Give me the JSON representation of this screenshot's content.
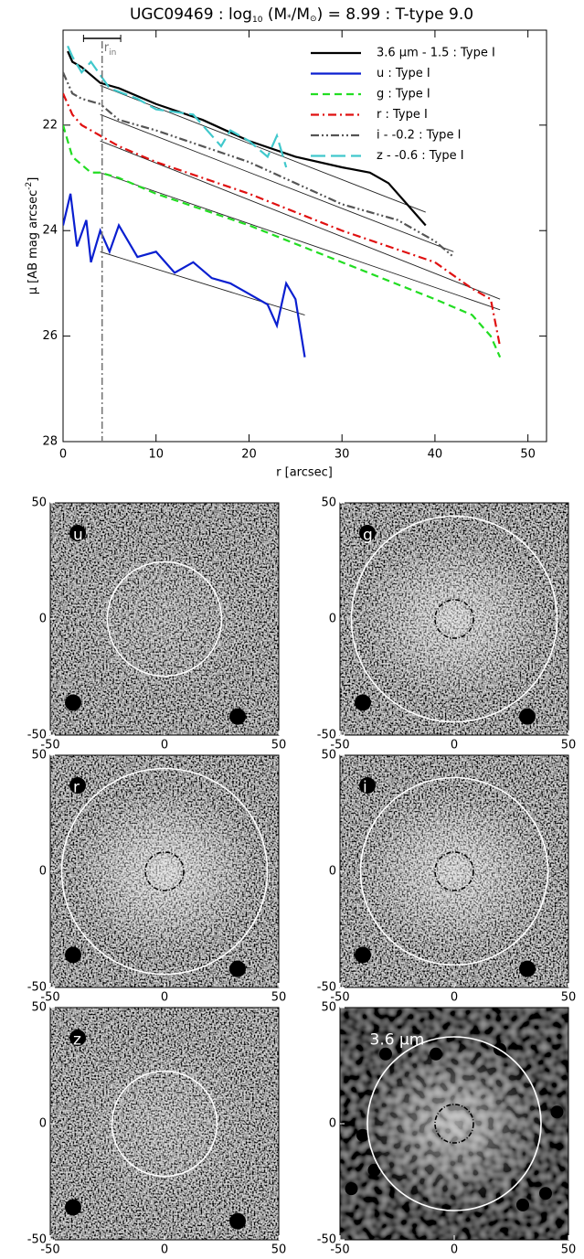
{
  "chart_data": [
    {
      "type": "line",
      "title": [
        "UGC09469 : log",
        "10",
        " (M",
        "*",
        "/M",
        "⊙",
        ") = 8.99 : T-type 9.0"
      ],
      "x_label": "r [arcsec]",
      "y_label": [
        "μ [AB mag arcsec",
        "-2",
        "]"
      ],
      "xlim": [
        0,
        52
      ],
      "ylim": [
        20.2,
        28
      ],
      "y_inverted": true,
      "xticks": [
        0,
        10,
        20,
        30,
        40,
        50
      ],
      "yticks": [
        22,
        24,
        26,
        28
      ],
      "series": [
        {
          "name": "3.6 μm - 1.5 : Type I",
          "color": "#000000",
          "label_color": "#000000",
          "linestyle": "solid",
          "x": [
            0.5,
            1,
            2,
            4,
            6,
            10,
            15,
            20,
            25,
            30,
            33,
            35,
            37,
            39
          ],
          "values": [
            20.6,
            20.8,
            20.9,
            21.2,
            21.3,
            21.6,
            21.9,
            22.3,
            22.6,
            22.8,
            22.9,
            23.1,
            23.5,
            23.9
          ]
        },
        {
          "name": "u : Type I",
          "color": "#0a1fd0",
          "label_color": "#0a1fd0",
          "linestyle": "solid",
          "x": [
            0,
            0.8,
            1.5,
            2.5,
            3,
            4,
            5,
            6,
            8,
            10,
            12,
            14,
            16,
            18,
            20,
            22,
            23,
            24,
            25,
            26
          ],
          "values": [
            23.9,
            23.3,
            24.3,
            23.8,
            24.6,
            24.0,
            24.4,
            23.9,
            24.5,
            24.4,
            24.8,
            24.6,
            24.9,
            25.0,
            25.2,
            25.4,
            25.8,
            25.0,
            25.3,
            26.4
          ]
        },
        {
          "name": "g : Type I",
          "color": "#22dd22",
          "label_color": "#22dd22",
          "linestyle": "dashed",
          "x": [
            0,
            1,
            3,
            4,
            6,
            10,
            20,
            30,
            40,
            44,
            46,
            47
          ],
          "values": [
            22.0,
            22.6,
            22.9,
            22.9,
            23.0,
            23.3,
            23.9,
            24.6,
            25.3,
            25.6,
            26.0,
            26.4
          ]
        },
        {
          "name": "r : Type I",
          "color": "#e01010",
          "label_color": "#e01010",
          "linestyle": "dashdot",
          "x": [
            0,
            1,
            2,
            4,
            6,
            10,
            20,
            30,
            40,
            44,
            46,
            47
          ],
          "values": [
            21.4,
            21.8,
            22.0,
            22.2,
            22.4,
            22.7,
            23.3,
            24.0,
            24.6,
            25.1,
            25.3,
            26.2
          ]
        },
        {
          "name": "i - -0.2 : Type I",
          "color": "#555555",
          "label_color": "#666666",
          "linestyle": "dashdotdot",
          "x": [
            0,
            1,
            2,
            4,
            6,
            10,
            20,
            30,
            36,
            40,
            42
          ],
          "values": [
            21.0,
            21.4,
            21.5,
            21.6,
            21.9,
            22.1,
            22.7,
            23.5,
            23.8,
            24.2,
            24.5
          ]
        },
        {
          "name": "z - -0.6 : Type I",
          "color": "#40c8cc",
          "label_color": "#40c8cc",
          "linestyle": "longdash",
          "x": [
            0.5,
            1,
            2,
            3,
            5,
            8,
            10,
            14,
            17,
            18,
            20,
            22,
            23,
            24
          ],
          "values": [
            20.5,
            20.7,
            21.0,
            20.8,
            21.3,
            21.5,
            21.7,
            21.8,
            22.4,
            22.1,
            22.3,
            22.6,
            22.2,
            22.8
          ]
        }
      ],
      "fits": [
        {
          "x": [
            4,
            39
          ],
          "values": [
            21.25,
            23.65
          ]
        },
        {
          "x": [
            4,
            26
          ],
          "values": [
            24.4,
            25.6
          ]
        },
        {
          "x": [
            4,
            47
          ],
          "values": [
            22.9,
            25.5
          ]
        },
        {
          "x": [
            4,
            47
          ],
          "values": [
            22.3,
            25.3
          ]
        },
        {
          "x": [
            4,
            42
          ],
          "values": [
            21.8,
            24.4
          ]
        }
      ],
      "r_in": {
        "label": "r",
        "sub": "in",
        "x": 4.2,
        "range": [
          2.2,
          6.2
        ]
      }
    },
    {
      "type": "image",
      "label": "u",
      "xlim": [
        -50,
        50
      ],
      "ylim": [
        -50,
        50
      ],
      "xticks": [
        -50,
        0,
        50
      ],
      "yticks": [
        -50,
        0,
        50
      ],
      "aperture_radius": 25,
      "glow": 0.15
    },
    {
      "type": "image",
      "label": "g",
      "xlim": [
        -50,
        50
      ],
      "ylim": [
        -50,
        50
      ],
      "xticks": [
        -50,
        0,
        50
      ],
      "yticks": [
        -50,
        0,
        50
      ],
      "aperture_radius": 45,
      "inner_radius": 4.2,
      "glow": 0.5
    },
    {
      "type": "image",
      "label": "r",
      "xlim": [
        -50,
        50
      ],
      "ylim": [
        -50,
        50
      ],
      "xticks": [
        -50,
        0,
        50
      ],
      "yticks": [
        -50,
        0,
        50
      ],
      "aperture_radius": 45,
      "inner_radius": 4.2,
      "glow": 0.55
    },
    {
      "type": "image",
      "label": "i",
      "xlim": [
        -50,
        50
      ],
      "ylim": [
        -50,
        50
      ],
      "xticks": [
        -50,
        0,
        50
      ],
      "yticks": [
        -50,
        0,
        50
      ],
      "aperture_radius": 41,
      "inner_radius": 4.2,
      "glow": 0.5
    },
    {
      "type": "image",
      "label": "z",
      "xlim": [
        -50,
        50
      ],
      "ylim": [
        -50,
        50
      ],
      "xticks": [
        -50,
        0,
        50
      ],
      "yticks": [
        -50,
        0,
        50
      ],
      "aperture_radius": 23,
      "glow": 0.2
    },
    {
      "type": "image",
      "label": "3.6 μm",
      "xlim": [
        -50,
        50
      ],
      "ylim": [
        -50,
        50
      ],
      "xticks": [
        -50,
        0,
        50
      ],
      "yticks": [
        -50,
        0,
        50
      ],
      "aperture_radius": 38,
      "inner_radius": 4.2,
      "glow": 0.6
    }
  ]
}
